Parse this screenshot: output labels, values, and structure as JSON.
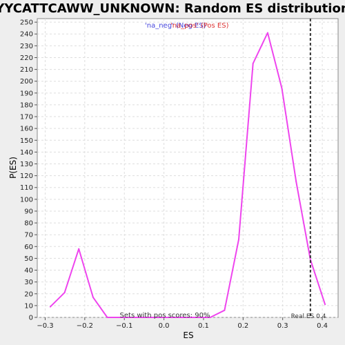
{
  "chart_data": {
    "type": "line",
    "title": "YYCATTCAWW_UNKNOWN: Random ES distribution",
    "xlabel": "ES",
    "ylabel": "P(ES)",
    "xlim": [
      -0.32,
      0.44
    ],
    "ylim": [
      0,
      253
    ],
    "x_ticks": [
      -0.3,
      -0.2,
      -0.1,
      0.0,
      0.1,
      0.2,
      0.3,
      0.4
    ],
    "x_tick_labels": [
      "−0.3",
      "−0.2",
      "−0.1",
      "0.0",
      "0.1",
      "0.2",
      "0.3",
      "0.4"
    ],
    "y_ticks": [
      0,
      10,
      20,
      30,
      40,
      50,
      60,
      70,
      80,
      90,
      100,
      110,
      120,
      130,
      140,
      150,
      160,
      170,
      180,
      190,
      200,
      210,
      220,
      230,
      240,
      250
    ],
    "grid": true,
    "series": [
      {
        "name": "",
        "color": "#ee44ee",
        "x": [
          -0.287,
          -0.251,
          -0.215,
          -0.179,
          -0.143,
          -0.107,
          -0.071,
          -0.035,
          0.001,
          0.037,
          0.073,
          0.117,
          0.153,
          0.189,
          0.225,
          0.262,
          0.298,
          0.334,
          0.37,
          0.407
        ],
        "y": [
          9,
          21,
          58,
          17,
          0,
          0,
          0,
          0,
          0,
          0,
          0,
          0,
          6,
          66,
          215,
          241,
          194,
          115,
          49,
          11
        ]
      }
    ],
    "legend": [
      {
        "label": "'na_neg' (Neg ES)",
        "color": "#4444dd"
      },
      {
        "label": "'na_pos' (Pos ES)",
        "color": "#dd3333"
      }
    ],
    "legend_position": "top-center",
    "real_es": 0.37,
    "real_es_label": "Real ES 0.4",
    "annotation": "Sets with pos scores: 90%"
  }
}
